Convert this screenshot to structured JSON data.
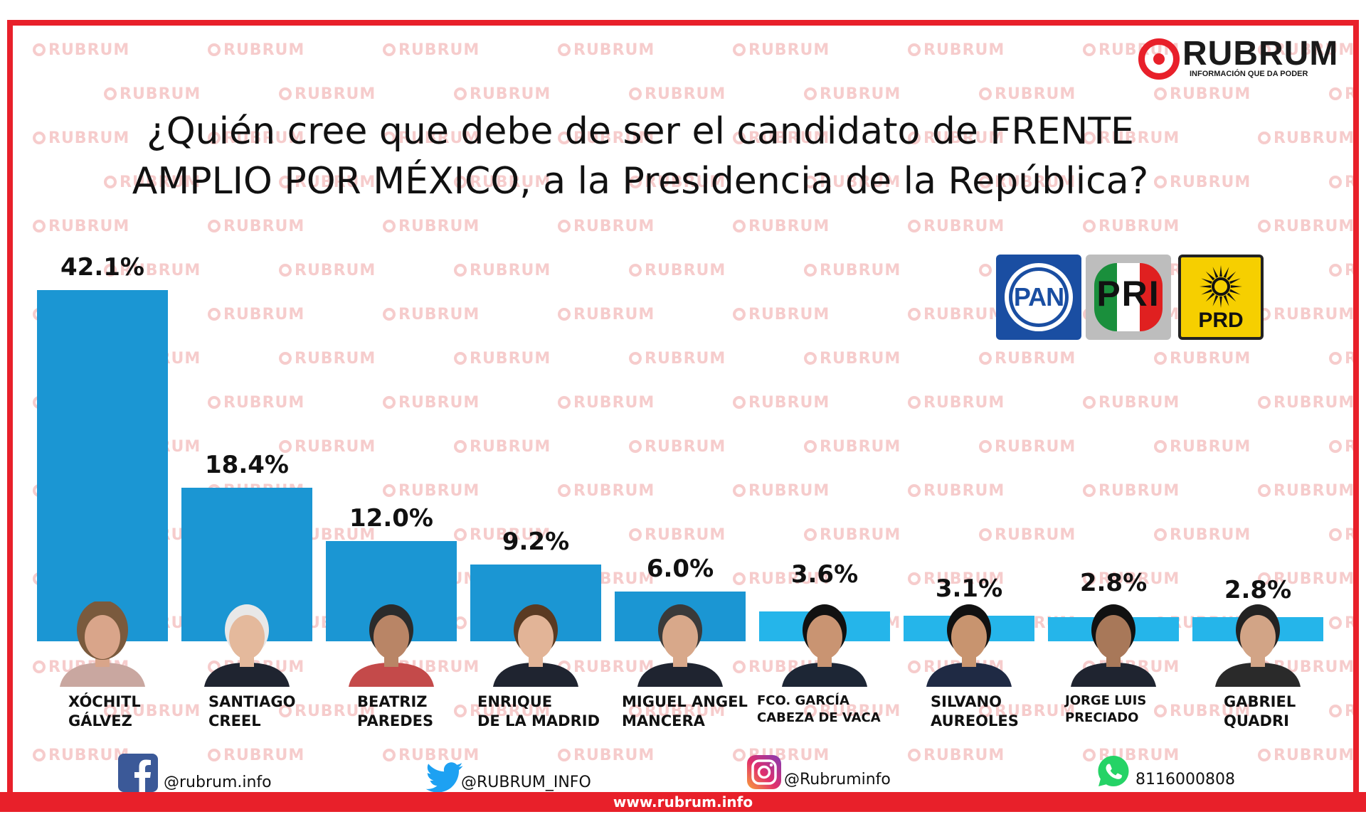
{
  "brand": {
    "name": "RUBRUM",
    "tagline": "INFORMACIÓN QUE DA PODER",
    "watermark": "RUBRUM",
    "accent_color": "#e8202a",
    "bar_color": "#1b96d3",
    "bar_color_light": "#25b5ea"
  },
  "title": {
    "line1": "¿Quién cree que debe de ser el candidato de FRENTE",
    "line2": "AMPLIO POR MÉXICO,  a la Presidencia de la República?"
  },
  "party_logos": {
    "pan": "PAN",
    "pri": "PRI",
    "prd": "PRD"
  },
  "chart_data": {
    "type": "bar",
    "title": "¿Quién cree que debe de ser el candidato de FRENTE AMPLIO POR MÉXICO, a la Presidencia de la República?",
    "categories": [
      "XÓCHITL GÁLVEZ",
      "SANTIAGO CREEL",
      "BEATRIZ PAREDES",
      "ENRIQUE DE LA MADRID",
      "MIGUEL ANGEL MANCERA",
      "FCO. GARCÍA CABEZA DE VACA",
      "SILVANO AUREOLES",
      "JORGE LUIS PRECIADO",
      "GABRIEL QUADRI"
    ],
    "category_lines": [
      [
        "XÓCHITL",
        "GÁLVEZ"
      ],
      [
        "SANTIAGO",
        "CREEL"
      ],
      [
        "BEATRIZ",
        "PAREDES"
      ],
      [
        "ENRIQUE",
        "DE LA MADRID"
      ],
      [
        "MIGUEL ANGEL",
        "MANCERA"
      ],
      [
        "FCO. GARCÍA",
        "CABEZA DE VACA"
      ],
      [
        "SILVANO",
        "AUREOLES"
      ],
      [
        "JORGE LUIS",
        "PRECIADO"
      ],
      [
        "GABRIEL",
        "QUADRI"
      ]
    ],
    "values": [
      42.1,
      18.4,
      12.0,
      9.2,
      6.0,
      3.6,
      3.1,
      2.8,
      2.8
    ],
    "value_labels": [
      "42.1%",
      "18.4%",
      "12.0%",
      "9.2%",
      "6.0%",
      "3.6%",
      "3.1%",
      "2.8%",
      "2.8%"
    ],
    "xlabel": "",
    "ylabel": "",
    "ylim": [
      0,
      42.1
    ],
    "grid": false,
    "legend": "none"
  },
  "social": {
    "facebook": "@rubrum.info",
    "twitter": "@RUBRUM_INFO",
    "instagram": "@Rubruminfo",
    "whatsapp": "8116000808"
  },
  "footer": {
    "url": "www.rubrum.info"
  },
  "icons": [
    "facebook-icon",
    "twitter-icon",
    "instagram-icon",
    "whatsapp-icon"
  ]
}
